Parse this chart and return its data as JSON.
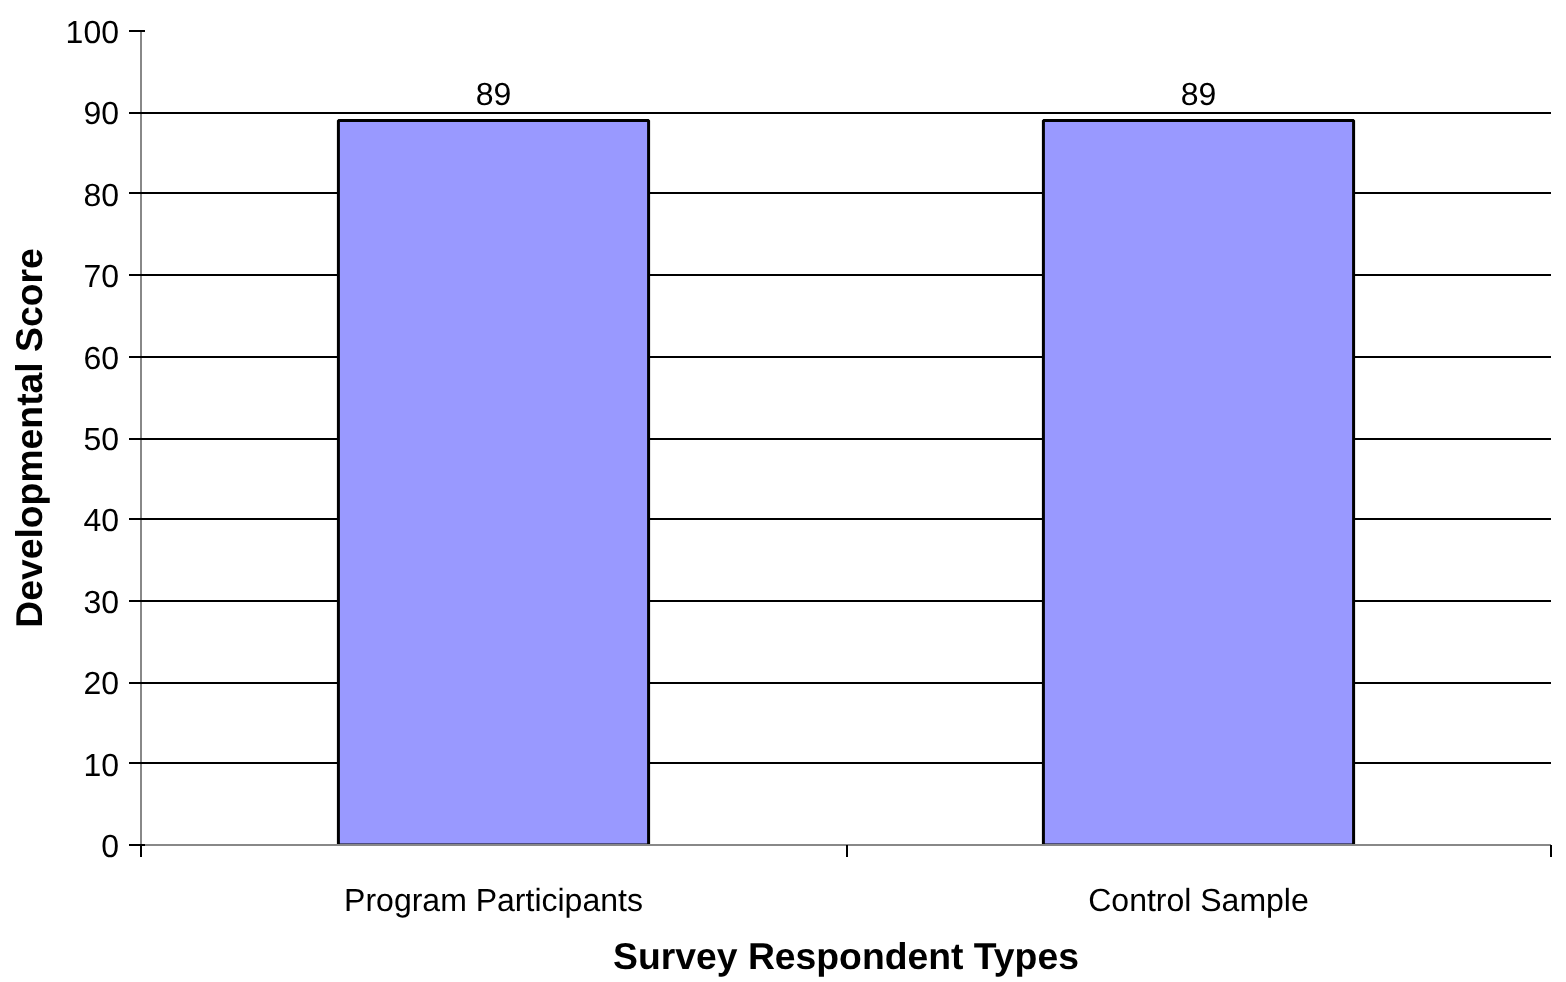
{
  "chart_data": {
    "type": "bar",
    "xlabel": "Survey Respondent Types",
    "ylabel": "Developmental Score",
    "categories": [
      "Program Participants",
      "Control Sample"
    ],
    "values": [
      89,
      89
    ],
    "color": "#9999ff",
    "data_labels": true,
    "ylim": [
      0,
      100
    ],
    "yticks": [
      0,
      10,
      20,
      30,
      40,
      50,
      60,
      70,
      80,
      90,
      100
    ],
    "grid": "y"
  }
}
